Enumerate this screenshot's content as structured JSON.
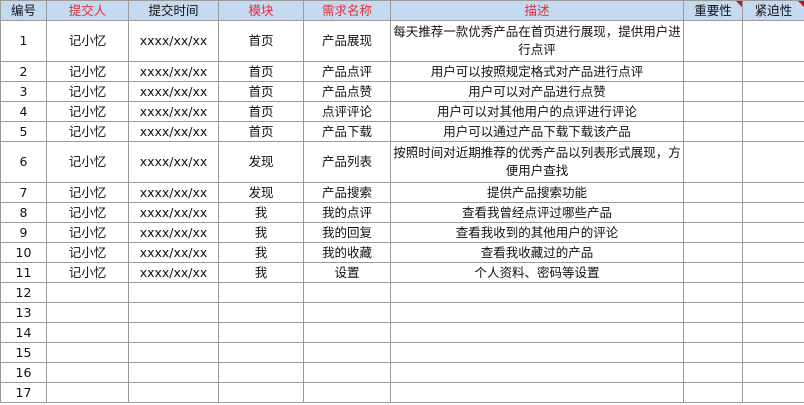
{
  "headers": [
    {
      "label": "编号",
      "red": false
    },
    {
      "label": "提交人",
      "red": true
    },
    {
      "label": "提交时间",
      "red": false
    },
    {
      "label": "模块",
      "red": true
    },
    {
      "label": "需求名称",
      "red": true
    },
    {
      "label": "描述",
      "red": true
    },
    {
      "label": "重要性",
      "red": false,
      "comment": true
    },
    {
      "label": "紧迫性",
      "red": false,
      "comment": true
    }
  ],
  "rows": [
    [
      "1",
      "记小忆",
      "xxxx/xx/xx",
      "首页",
      "产品展现",
      "每天推荐一款优秀产品在首页进行展现，提供用户进行点评",
      "",
      ""
    ],
    [
      "2",
      "记小忆",
      "xxxx/xx/xx",
      "首页",
      "产品点评",
      "用户可以按照规定格式对产品进行点评",
      "",
      ""
    ],
    [
      "3",
      "记小忆",
      "xxxx/xx/xx",
      "首页",
      "产品点赞",
      "用户可以对产品进行点赞",
      "",
      ""
    ],
    [
      "4",
      "记小忆",
      "xxxx/xx/xx",
      "首页",
      "点评评论",
      "用户可以对其他用户的点评进行评论",
      "",
      ""
    ],
    [
      "5",
      "记小忆",
      "xxxx/xx/xx",
      "首页",
      "产品下载",
      "用户可以通过产品下载下载该产品",
      "",
      ""
    ],
    [
      "6",
      "记小忆",
      "xxxx/xx/xx",
      "发现",
      "产品列表",
      "按照时间对近期推荐的优秀产品以列表形式展现，方便用户查找",
      "",
      ""
    ],
    [
      "7",
      "记小忆",
      "xxxx/xx/xx",
      "发现",
      "产品搜索",
      "提供产品搜索功能",
      "",
      ""
    ],
    [
      "8",
      "记小忆",
      "xxxx/xx/xx",
      "我",
      "我的点评",
      "查看我曾经点评过哪些产品",
      "",
      ""
    ],
    [
      "9",
      "记小忆",
      "xxxx/xx/xx",
      "我",
      "我的回复",
      "查看我收到的其他用户的评论",
      "",
      ""
    ],
    [
      "10",
      "记小忆",
      "xxxx/xx/xx",
      "我",
      "我的收藏",
      "查看我收藏过的产品",
      "",
      ""
    ],
    [
      "11",
      "记小忆",
      "xxxx/xx/xx",
      "我",
      "设置",
      "个人资料、密码等设置",
      "",
      ""
    ],
    [
      "12",
      "",
      "",
      "",
      "",
      "",
      "",
      ""
    ],
    [
      "13",
      "",
      "",
      "",
      "",
      "",
      "",
      ""
    ],
    [
      "14",
      "",
      "",
      "",
      "",
      "",
      "",
      ""
    ],
    [
      "15",
      "",
      "",
      "",
      "",
      "",
      "",
      ""
    ],
    [
      "16",
      "",
      "",
      "",
      "",
      "",
      "",
      ""
    ],
    [
      "17",
      "",
      "",
      "",
      "",
      "",
      "",
      ""
    ]
  ],
  "colors": {
    "header_bg": "#c5d9f1",
    "header_red": "#e0303a",
    "comment_marker": "#c0142a"
  }
}
